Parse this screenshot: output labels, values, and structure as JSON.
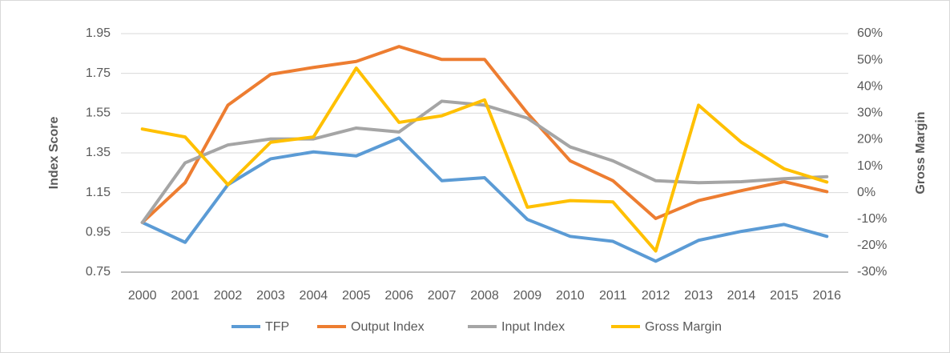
{
  "chart_data": {
    "type": "line",
    "y_label": "Index Score",
    "y2_label": "Gross Margin",
    "categories": [
      "2000",
      "2001",
      "2002",
      "2003",
      "2004",
      "2005",
      "2006",
      "2007",
      "2008",
      "2009",
      "2010",
      "2011",
      "2012",
      "2013",
      "2014",
      "2015",
      "2016"
    ],
    "series": [
      {
        "name": "TFP",
        "color": "#5b9bd5",
        "values": [
          1.0,
          0.9,
          1.19,
          1.32,
          1.355,
          1.335,
          1.425,
          1.21,
          1.225,
          1.015,
          0.93,
          0.905,
          0.805,
          0.91,
          0.955,
          0.99,
          0.93
        ]
      },
      {
        "name": "Output Index",
        "color": "#ed7d31",
        "values": [
          1.0,
          1.2,
          1.59,
          1.745,
          1.78,
          1.81,
          1.885,
          1.82,
          1.82,
          1.55,
          1.31,
          1.21,
          1.02,
          1.11,
          1.16,
          1.205,
          1.155
        ]
      },
      {
        "name": "Input Index",
        "color": "#a5a5a5",
        "values": [
          1.0,
          1.3,
          1.39,
          1.42,
          1.42,
          1.475,
          1.455,
          1.61,
          1.59,
          1.525,
          1.38,
          1.31,
          1.21,
          1.2,
          1.205,
          1.22,
          1.23
        ]
      },
      {
        "name": "Gross Margin",
        "color": "#ffc000",
        "axis": "y2",
        "values": [
          24,
          21,
          3,
          19,
          21,
          47,
          26.5,
          29,
          35,
          -5.5,
          -3,
          -3.5,
          -22,
          33,
          19,
          9,
          4
        ]
      }
    ],
    "ylim": [
      0.75,
      1.95
    ],
    "yticks": [
      0.75,
      0.95,
      1.15,
      1.35,
      1.55,
      1.75,
      1.95
    ],
    "y2lim": [
      -30,
      60
    ],
    "y2ticks": [
      {
        "value": -30,
        "label": "-30%"
      },
      {
        "value": -20,
        "label": "-20%"
      },
      {
        "value": -10,
        "label": "-10%"
      },
      {
        "value": 0,
        "label": "0%"
      },
      {
        "value": 10,
        "label": "10%"
      },
      {
        "value": 20,
        "label": "20%"
      },
      {
        "value": 30,
        "label": "30%"
      },
      {
        "value": 40,
        "label": "40%"
      },
      {
        "value": 50,
        "label": "50%"
      },
      {
        "value": 60,
        "label": "60%"
      }
    ],
    "grid": true,
    "legend": "bottom"
  }
}
